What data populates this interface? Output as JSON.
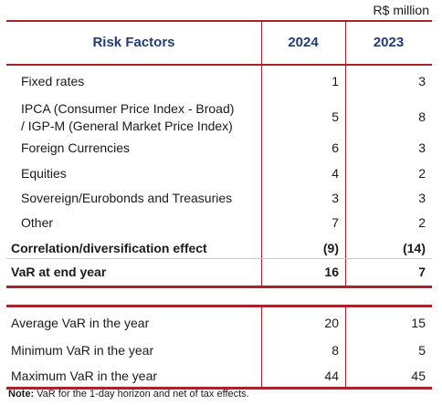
{
  "unit": "R$ million",
  "header": {
    "risk_factors": "Risk Factors",
    "col_2024": "2024",
    "col_2023": "2023"
  },
  "rows": [
    {
      "label": "Fixed rates",
      "v2024": "1",
      "v2023": "3"
    },
    {
      "label": "IPCA (Consumer Price Index - Broad) / IGP-M (General Market Price Index)",
      "label_line1": "IPCA (Consumer Price Index - Broad)",
      "label_line2": "/ IGP-M (General Market Price Index)",
      "v2024": "5",
      "v2023": "8"
    },
    {
      "label": "Foreign Currencies",
      "v2024": "6",
      "v2023": "3"
    },
    {
      "label": "Equities",
      "v2024": "4",
      "v2023": "2"
    },
    {
      "label": "Sovereign/Eurobonds and Treasuries",
      "v2024": "3",
      "v2023": "3"
    },
    {
      "label": "Other",
      "v2024": "7",
      "v2023": "2"
    }
  ],
  "correlation": {
    "label": "Correlation/diversification effect",
    "v2024": "(9)",
    "v2023": "(14)"
  },
  "var_end": {
    "label": "VaR at end year",
    "v2024": "16",
    "v2023": "7"
  },
  "stats": [
    {
      "label": "Average VaR in the year",
      "v2024": "20",
      "v2023": "15"
    },
    {
      "label": "Minimum VaR in the year",
      "v2024": "8",
      "v2023": "5"
    },
    {
      "label": "Maximum VaR in the year",
      "v2024": "44",
      "v2023": "45"
    }
  ],
  "note": {
    "prefix": "Note:",
    "text": " VaR for the 1-day horizon and net of tax effects."
  }
}
